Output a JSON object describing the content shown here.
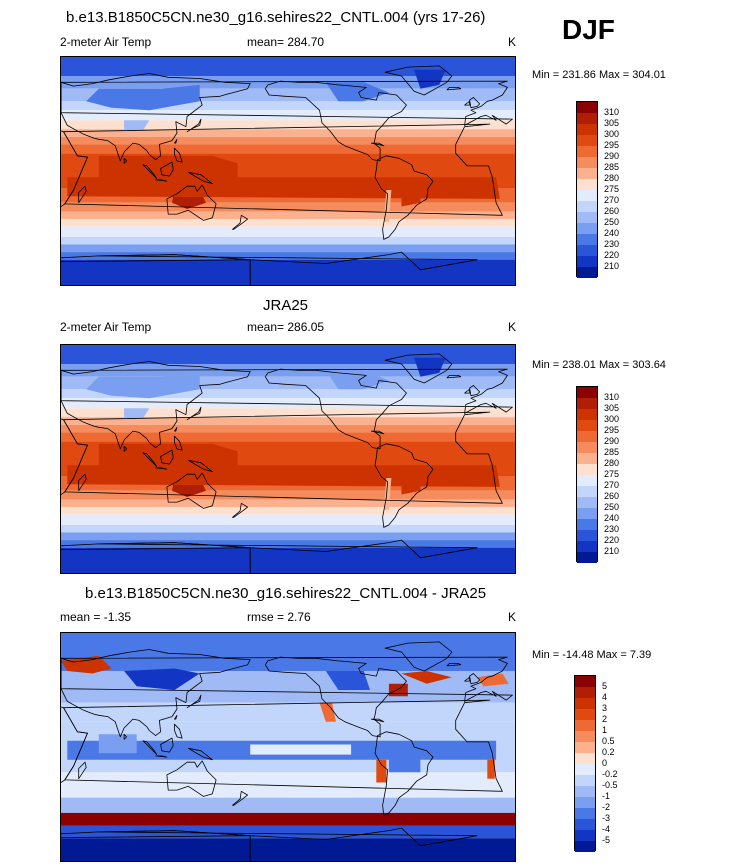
{
  "season": "DJF",
  "panels": [
    {
      "title": "b.e13.B1850C5CN.ne30_g16.sehires22_CNTL.004 (yrs 17-26)",
      "left_label": "2-meter Air Temp",
      "center_label": "mean= 284.70",
      "units": "K",
      "minmax": "Min = 231.86 Max = 304.01"
    },
    {
      "title": "JRA25",
      "left_label": "2-meter Air Temp",
      "center_label": "mean= 286.05",
      "units": "K",
      "minmax": "Min = 238.01 Max = 303.64"
    },
    {
      "title": "b.e13.B1850C5CN.ne30_g16.sehires22_CNTL.004 - JRA25",
      "left_label": "mean =  -1.35",
      "center_label": "rmse =   2.76",
      "units": "K",
      "minmax": "Min = -14.48 Max =   7.39"
    }
  ],
  "colorbars": {
    "temp_labels": [
      "310",
      "305",
      "300",
      "295",
      "290",
      "285",
      "280",
      "275",
      "270",
      "260",
      "250",
      "240",
      "230",
      "220",
      "210"
    ],
    "temp_colors": [
      "#8b0000",
      "#b01e05",
      "#cc3300",
      "#e04a10",
      "#ee6a32",
      "#f58c5e",
      "#fbb08e",
      "#fde0cf",
      "#e3ecfc",
      "#c2d5fb",
      "#9fbaf5",
      "#7a9ff0",
      "#4a78e6",
      "#2a55d8",
      "#1235c3",
      "#001a96"
    ],
    "diff_labels": [
      "5",
      "4",
      "3",
      "2",
      "1",
      "0.5",
      "0.2",
      "0",
      "-0.2",
      "-0.5",
      "-1",
      "-2",
      "-3",
      "-4",
      "-5"
    ],
    "diff_colors": [
      "#8b0000",
      "#b01e05",
      "#cc3300",
      "#e04a10",
      "#ee6a32",
      "#f58c5e",
      "#fbb08e",
      "#fde0cf",
      "#e3ecfc",
      "#c2d5fb",
      "#9fbaf5",
      "#7a9ff0",
      "#4a78e6",
      "#2a55d8",
      "#1235c3",
      "#001a96"
    ]
  },
  "chart_data": [
    {
      "type": "heatmap",
      "title": "b.e13.B1850C5CN.ne30_g16.sehires22_CNTL.004 (yrs 17-26)",
      "variable": "2-meter Air Temp",
      "units": "K",
      "mean": 284.7,
      "min": 231.86,
      "max": 304.01,
      "contour_levels": [
        210,
        220,
        230,
        240,
        250,
        260,
        270,
        275,
        280,
        285,
        290,
        295,
        300,
        305,
        310
      ]
    },
    {
      "type": "heatmap",
      "title": "JRA25",
      "variable": "2-meter Air Temp",
      "units": "K",
      "mean": 286.05,
      "min": 238.01,
      "max": 303.64,
      "contour_levels": [
        210,
        220,
        230,
        240,
        250,
        260,
        270,
        275,
        280,
        285,
        290,
        295,
        300,
        305,
        310
      ]
    },
    {
      "type": "heatmap",
      "title": "b.e13.B1850C5CN.ne30_g16.sehires22_CNTL.004 - JRA25",
      "units": "K",
      "mean": -1.35,
      "rmse": 2.76,
      "min": -14.48,
      "max": 7.39,
      "contour_levels": [
        -5,
        -4,
        -3,
        -2,
        -1,
        -0.5,
        -0.2,
        0,
        0.2,
        0.5,
        1,
        2,
        3,
        4,
        5
      ]
    }
  ]
}
